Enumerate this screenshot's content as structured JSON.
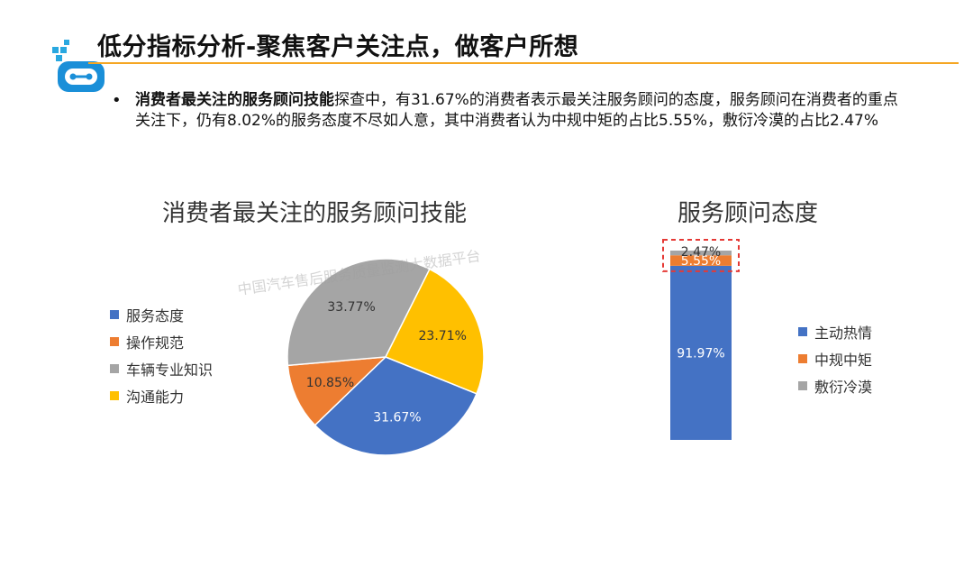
{
  "slide": {
    "title": "低分指标分析-聚焦客户关注点，做客户所想",
    "bullet_bold": "消费者最关注的服务顾问技能",
    "bullet_rest": "探查中，有31.67%的消费者表示最关注服务顾问的态度，服务顾问在消费者的重点关注下，仍有8.02%的服务态度不尽如人意，其中消费者认为中规中矩的占比5.55%，敷衍冷漠的占比2.47%",
    "watermark": "中国汽车售后服务质量监测大数据平台"
  },
  "colors": {
    "blue": "#4472c4",
    "orange": "#ed7d31",
    "gray": "#a5a5a5",
    "yellow": "#ffc000",
    "accent_rule": "#f5a623",
    "highlight_box": "#e53935"
  },
  "chart_data": [
    {
      "type": "pie",
      "title": "消费者最关注的服务顾问技能",
      "legend_position": "left",
      "slices": [
        {
          "name": "服务态度",
          "value": 31.67,
          "label": "31.67%",
          "color": "#4472c4"
        },
        {
          "name": "操作规范",
          "value": 10.85,
          "label": "10.85%",
          "color": "#ed7d31"
        },
        {
          "name": "车辆专业知识",
          "value": 33.77,
          "label": "33.77%",
          "color": "#a5a5a5"
        },
        {
          "name": "沟通能力",
          "value": 23.71,
          "label": "23.71%",
          "color": "#ffc000"
        }
      ]
    },
    {
      "type": "bar",
      "stacked": true,
      "title": "服务顾问态度",
      "legend_position": "right",
      "ylim": [
        0,
        100
      ],
      "series": [
        {
          "name": "主动热情",
          "value": 91.97,
          "label": "91.97%",
          "color": "#4472c4"
        },
        {
          "name": "中规中矩",
          "value": 5.55,
          "label": "5.55%",
          "color": "#ed7d31"
        },
        {
          "name": "敷衍冷漠",
          "value": 2.47,
          "label": "2.47%",
          "color": "#a5a5a5"
        }
      ]
    }
  ]
}
